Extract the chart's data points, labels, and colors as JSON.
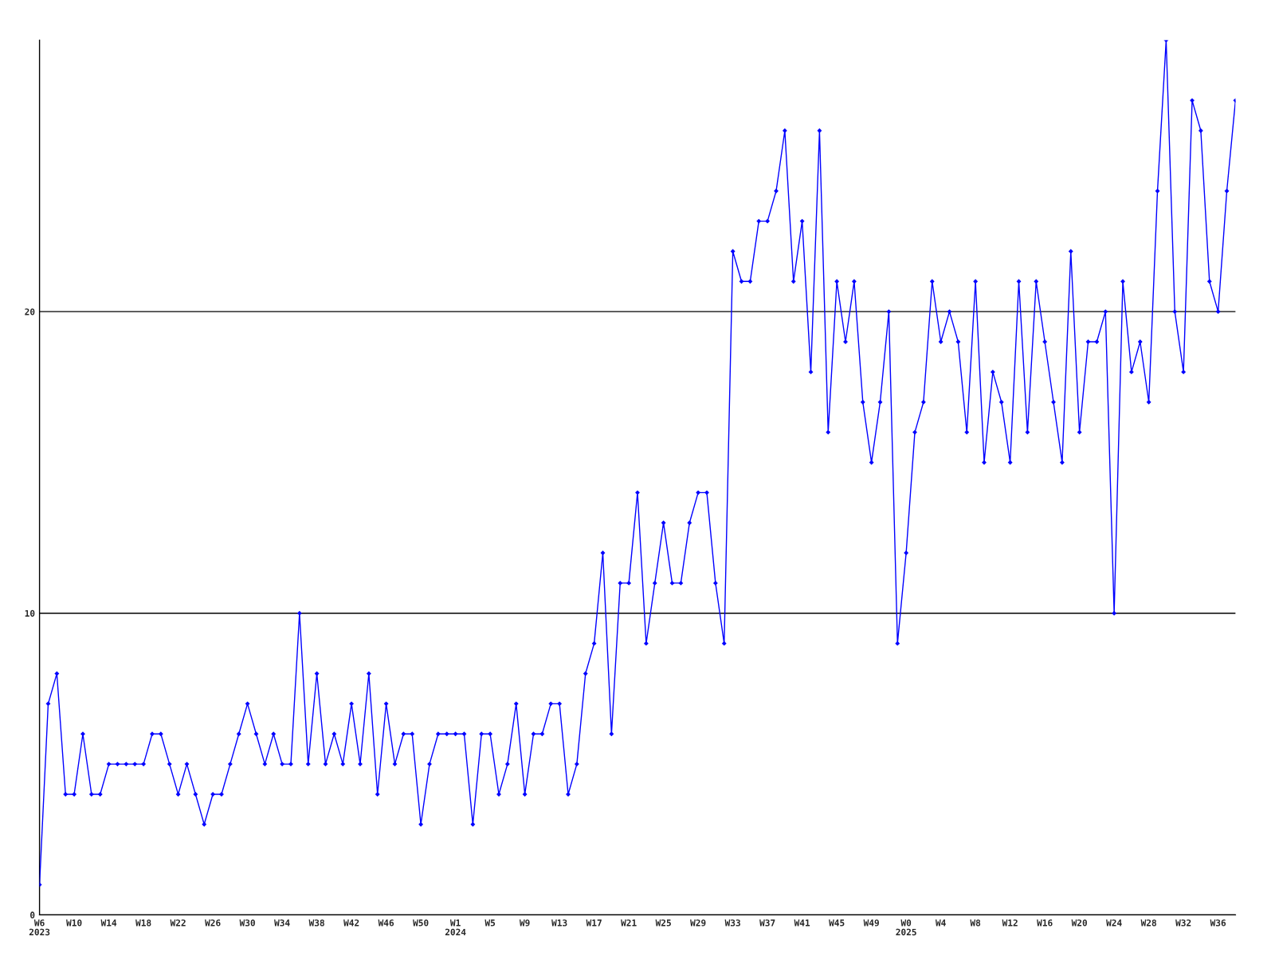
{
  "chart_data": {
    "type": "line",
    "categories": [
      "W6\n2023",
      null,
      null,
      null,
      "W10",
      null,
      null,
      null,
      "W14",
      null,
      null,
      null,
      "W18",
      null,
      null,
      null,
      "W22",
      null,
      null,
      null,
      "W26",
      null,
      null,
      null,
      "W30",
      null,
      null,
      null,
      "W34",
      null,
      null,
      null,
      "W38",
      null,
      null,
      null,
      "W42",
      null,
      null,
      null,
      "W46",
      null,
      null,
      null,
      "W50",
      null,
      null,
      null,
      "W1\n2024",
      null,
      null,
      null,
      "W5",
      null,
      null,
      null,
      "W9",
      null,
      null,
      null,
      "W13",
      null,
      null,
      null,
      "W17",
      null,
      null,
      null,
      "W21",
      null,
      null,
      null,
      "W25",
      null,
      null,
      null,
      "W29",
      null,
      null,
      null,
      "W33",
      null,
      null,
      null,
      "W37",
      null,
      null,
      null,
      "W41",
      null,
      null,
      null,
      "W45",
      null,
      null,
      null,
      "W49",
      null,
      null,
      null,
      "W0\n2025",
      null,
      null,
      null,
      "W4",
      null,
      null,
      null,
      "W8",
      null,
      null,
      null,
      "W12",
      null,
      null,
      null,
      "W16",
      null,
      null,
      null,
      "W20",
      null,
      null,
      null,
      "W24",
      null,
      null,
      null,
      "W28",
      null,
      null,
      null,
      "W32",
      null,
      null,
      null,
      "W36",
      null,
      null
    ],
    "series": [
      {
        "color": "#0000ff",
        "values": [
          1,
          7,
          8,
          4,
          4,
          6,
          4,
          4,
          5,
          5,
          5,
          5,
          5,
          6,
          6,
          5,
          4,
          5,
          4,
          3,
          4,
          4,
          5,
          6,
          7,
          6,
          5,
          6,
          5,
          5,
          10,
          5,
          8,
          5,
          6,
          5,
          7,
          5,
          8,
          4,
          7,
          5,
          6,
          6,
          3,
          5,
          6,
          6,
          6,
          6,
          3,
          6,
          6,
          4,
          5,
          7,
          4,
          6,
          6,
          7,
          7,
          4,
          5,
          8,
          9,
          12,
          6,
          11,
          11,
          14,
          9,
          11,
          13,
          11,
          11,
          13,
          14,
          14,
          11,
          9,
          22,
          21,
          21,
          23,
          23,
          24,
          26,
          21,
          23,
          18,
          26,
          16,
          21,
          19,
          21,
          17,
          15,
          17,
          20,
          9,
          12,
          16,
          17,
          21,
          19,
          20,
          19,
          16,
          21,
          15,
          18,
          17,
          15,
          21,
          16,
          21,
          19,
          17,
          15,
          22,
          16,
          19,
          19,
          20,
          10,
          21,
          18,
          19,
          17,
          24,
          29,
          20,
          18,
          27,
          26,
          21,
          20,
          24,
          27
        ]
      }
    ],
    "ylim": [
      0,
      29
    ],
    "yticks": [
      0,
      10,
      20
    ],
    "grid": "y",
    "marker": "diamond",
    "line_style": "solid",
    "legend": false
  }
}
